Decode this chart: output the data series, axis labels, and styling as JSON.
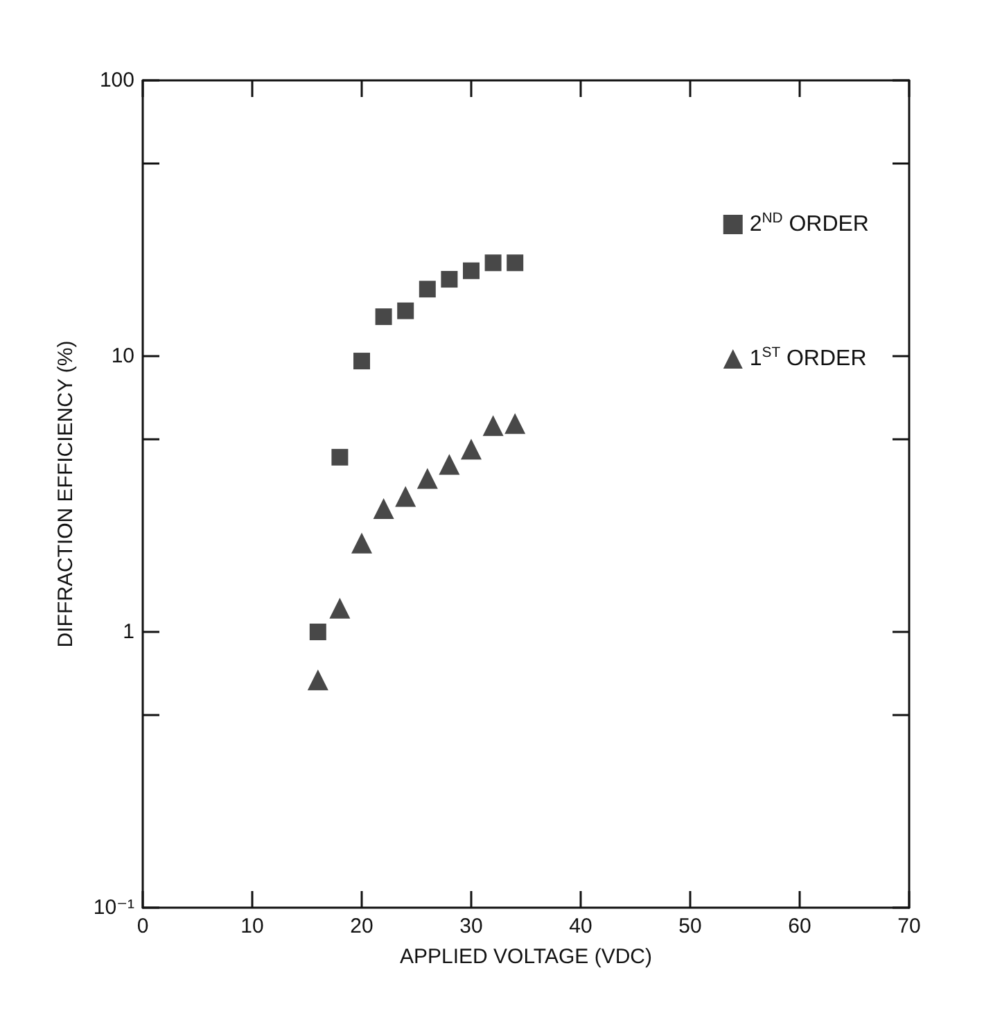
{
  "chart_data": {
    "type": "scatter",
    "xlabel": "APPLIED VOLTAGE (VDC)",
    "ylabel": "DIFFRACTION EFFICIENCY (%)",
    "log": "y",
    "grid": false,
    "legend": "right",
    "xlim": [
      0,
      70
    ],
    "xticks": [
      0,
      10,
      20,
      30,
      40,
      50,
      60,
      70
    ],
    "ylim": [
      0.1,
      100
    ],
    "yticks": [
      {
        "value": 0.1,
        "label": "10⁻¹"
      },
      {
        "value": 0.5,
        "label": null
      },
      1,
      {
        "value": 5,
        "label": null
      },
      10,
      {
        "value": 50,
        "label": null
      },
      100
    ],
    "series": [
      {
        "name": "2$^{ND}$ ORDER",
        "color": "#1a1a1a",
        "marker": "square",
        "x": [
          16,
          18,
          20,
          22,
          24,
          26,
          28,
          30,
          32,
          34
        ],
        "values": [
          1.0,
          4.3,
          9.6,
          13.9,
          14.6,
          17.5,
          19,
          20.4,
          21.8,
          21.8
        ]
      },
      {
        "name": "1$^{ST}$ ORDER",
        "color": "#1a1a1a",
        "marker": "triangle",
        "x": [
          16,
          18,
          20,
          22,
          24,
          26,
          28,
          30,
          32,
          34
        ],
        "values": [
          0.67,
          1.22,
          2.1,
          2.8,
          3.1,
          3.6,
          4.05,
          4.6,
          5.6,
          5.7
        ]
      }
    ]
  }
}
